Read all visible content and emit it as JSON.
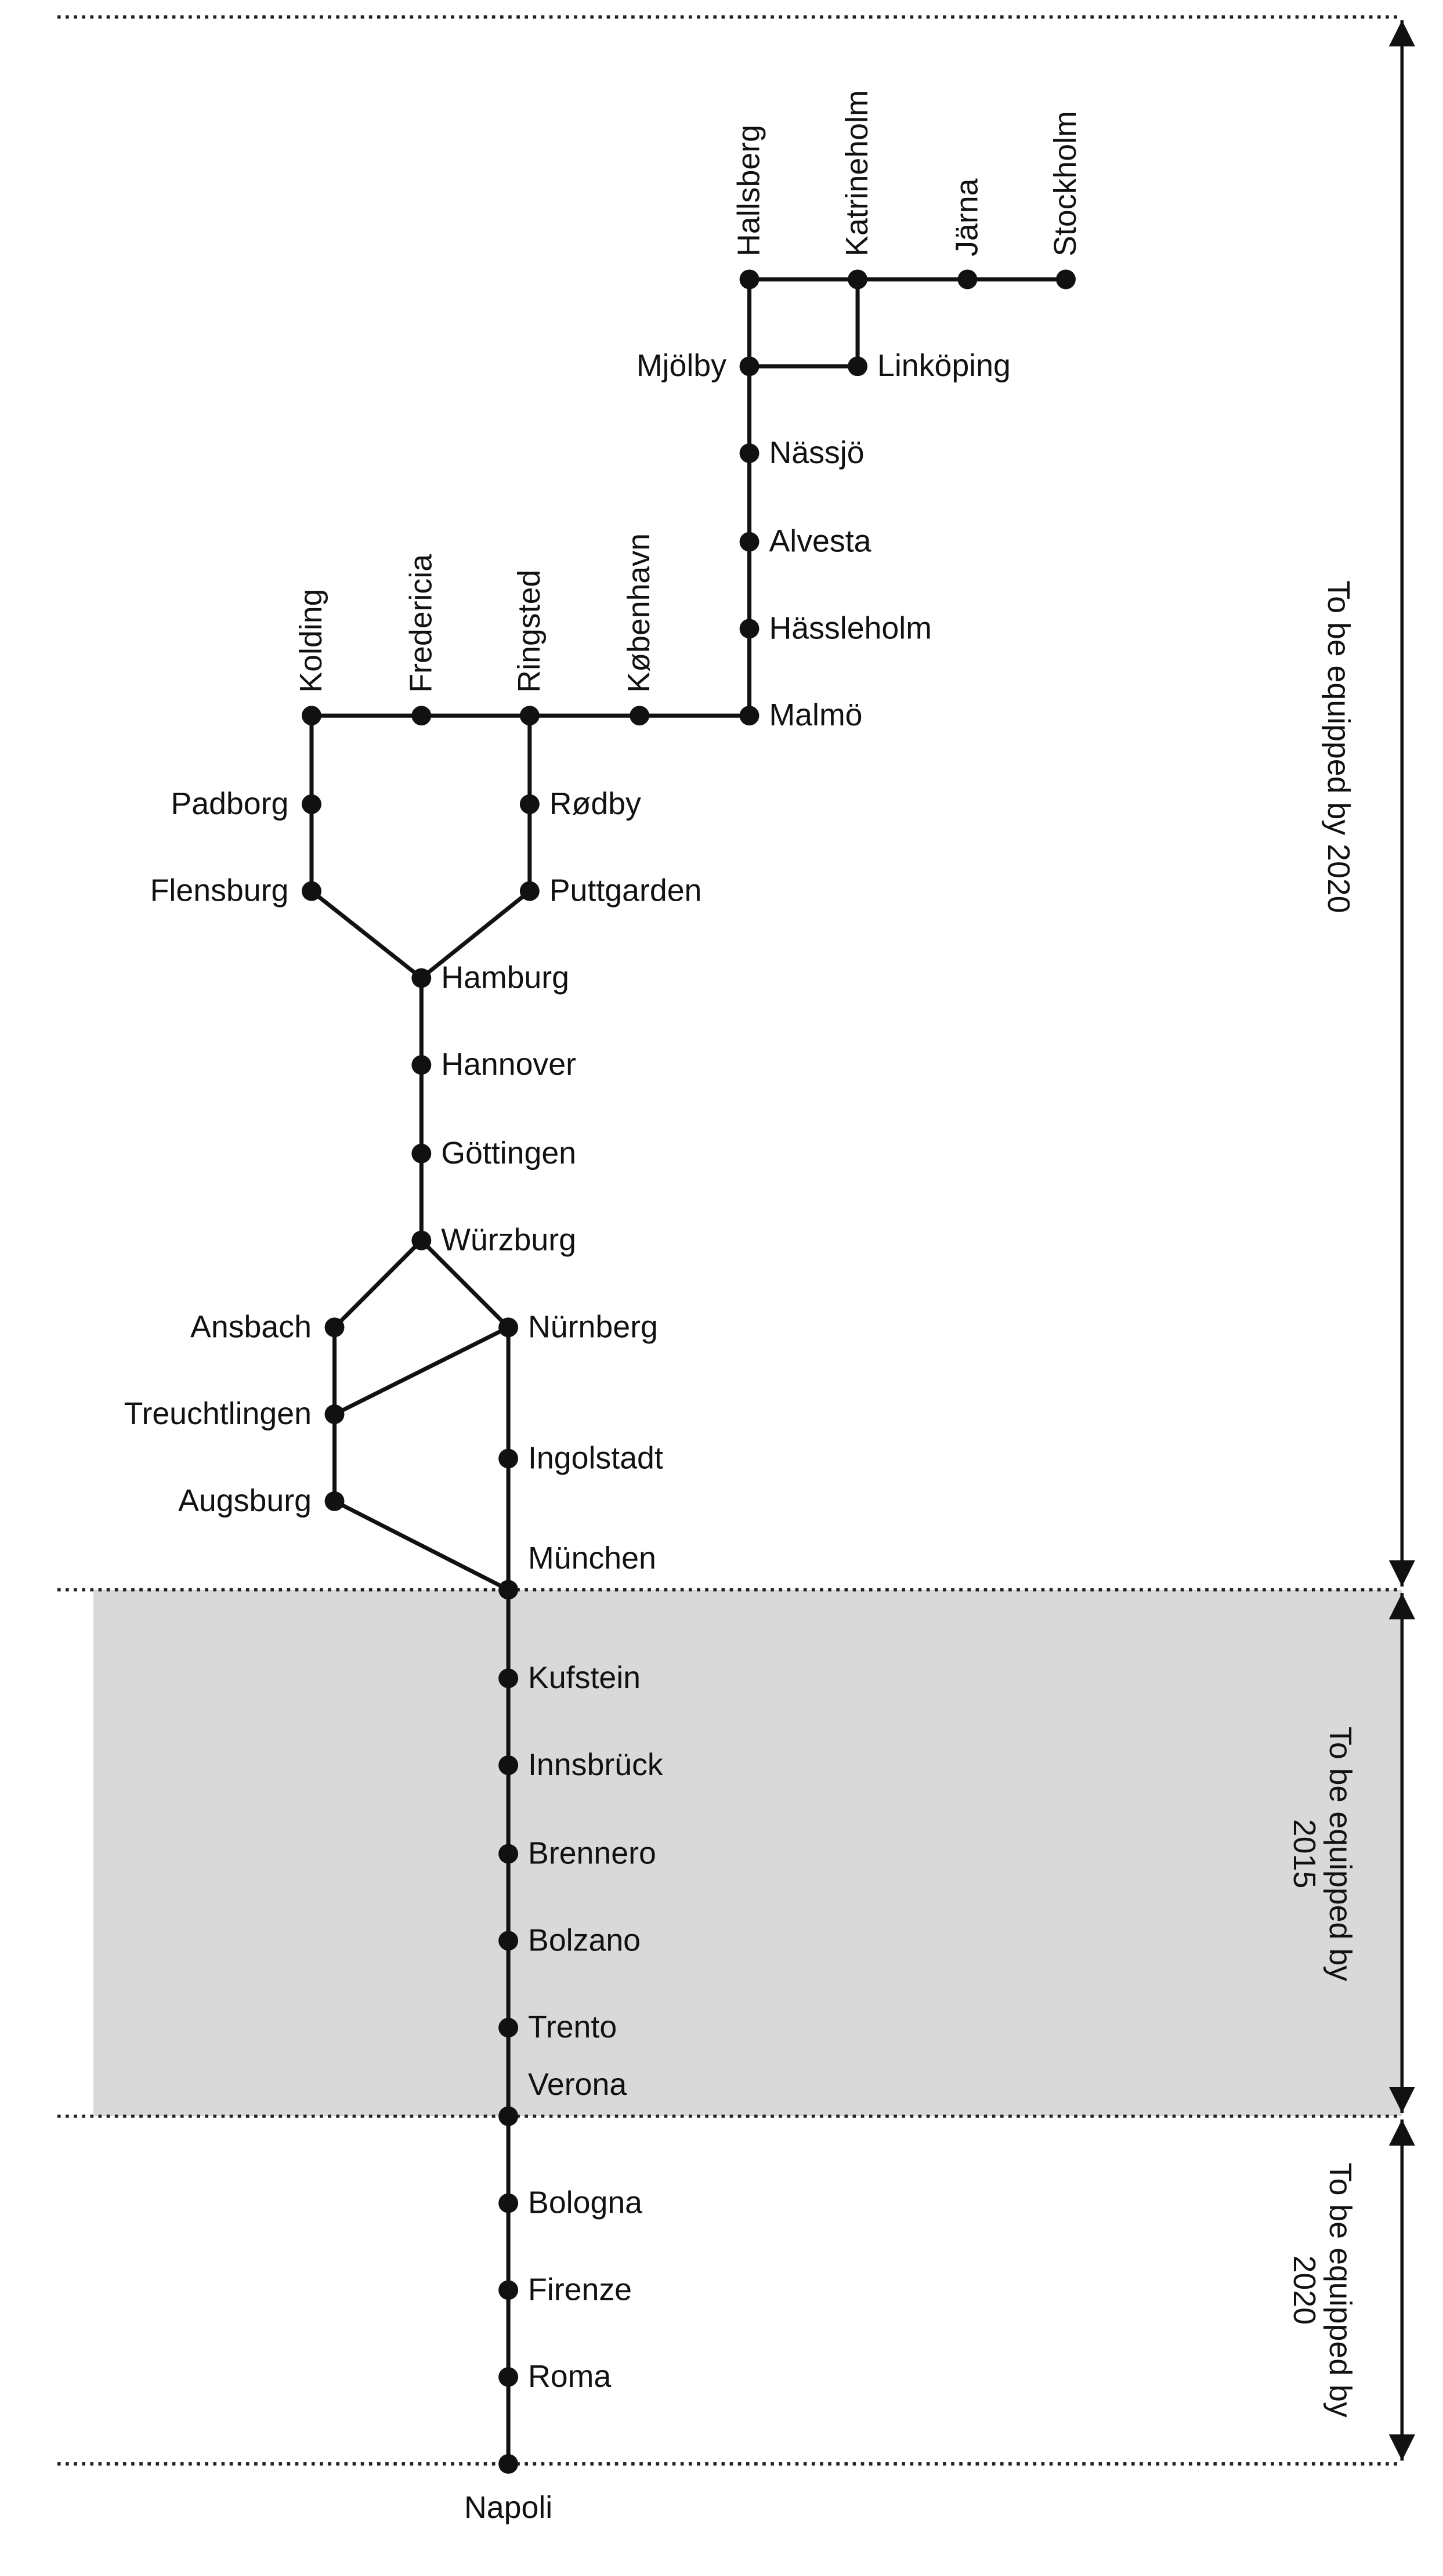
{
  "nodes": [
    {
      "label": "Hallsberg"
    },
    {
      "label": "Katrineholm"
    },
    {
      "label": "Järna"
    },
    {
      "label": "Stockholm"
    },
    {
      "label": "Mjölby"
    },
    {
      "label": "Linköping"
    },
    {
      "label": "Nässjö"
    },
    {
      "label": "Alvesta"
    },
    {
      "label": "Hässleholm"
    },
    {
      "label": "Malmö"
    },
    {
      "label": "København"
    },
    {
      "label": "Ringsted"
    },
    {
      "label": "Fredericia"
    },
    {
      "label": "Kolding"
    },
    {
      "label": "Padborg"
    },
    {
      "label": "Flensburg"
    },
    {
      "label": "Rødby"
    },
    {
      "label": "Puttgarden"
    },
    {
      "label": "Hamburg"
    },
    {
      "label": "Hannover"
    },
    {
      "label": "Göttingen"
    },
    {
      "label": "Würzburg"
    },
    {
      "label": "Ansbach"
    },
    {
      "label": "Nürnberg"
    },
    {
      "label": "Treuchtlingen"
    },
    {
      "label": "Ingolstadt"
    },
    {
      "label": "Augsburg"
    },
    {
      "label": "München"
    },
    {
      "label": "Kufstein"
    },
    {
      "label": "Innsbrück"
    },
    {
      "label": "Brennero"
    },
    {
      "label": "Bolzano"
    },
    {
      "label": "Trento"
    },
    {
      "label": "Verona"
    },
    {
      "label": "Bologna"
    },
    {
      "label": "Firenze"
    },
    {
      "label": "Roma"
    },
    {
      "label": "Napoli"
    }
  ],
  "sections": [
    {
      "label": "To be equipped by 2020"
    },
    {
      "label": "To be equipped by 2015"
    },
    {
      "label": "To be equipped by 2020"
    }
  ]
}
